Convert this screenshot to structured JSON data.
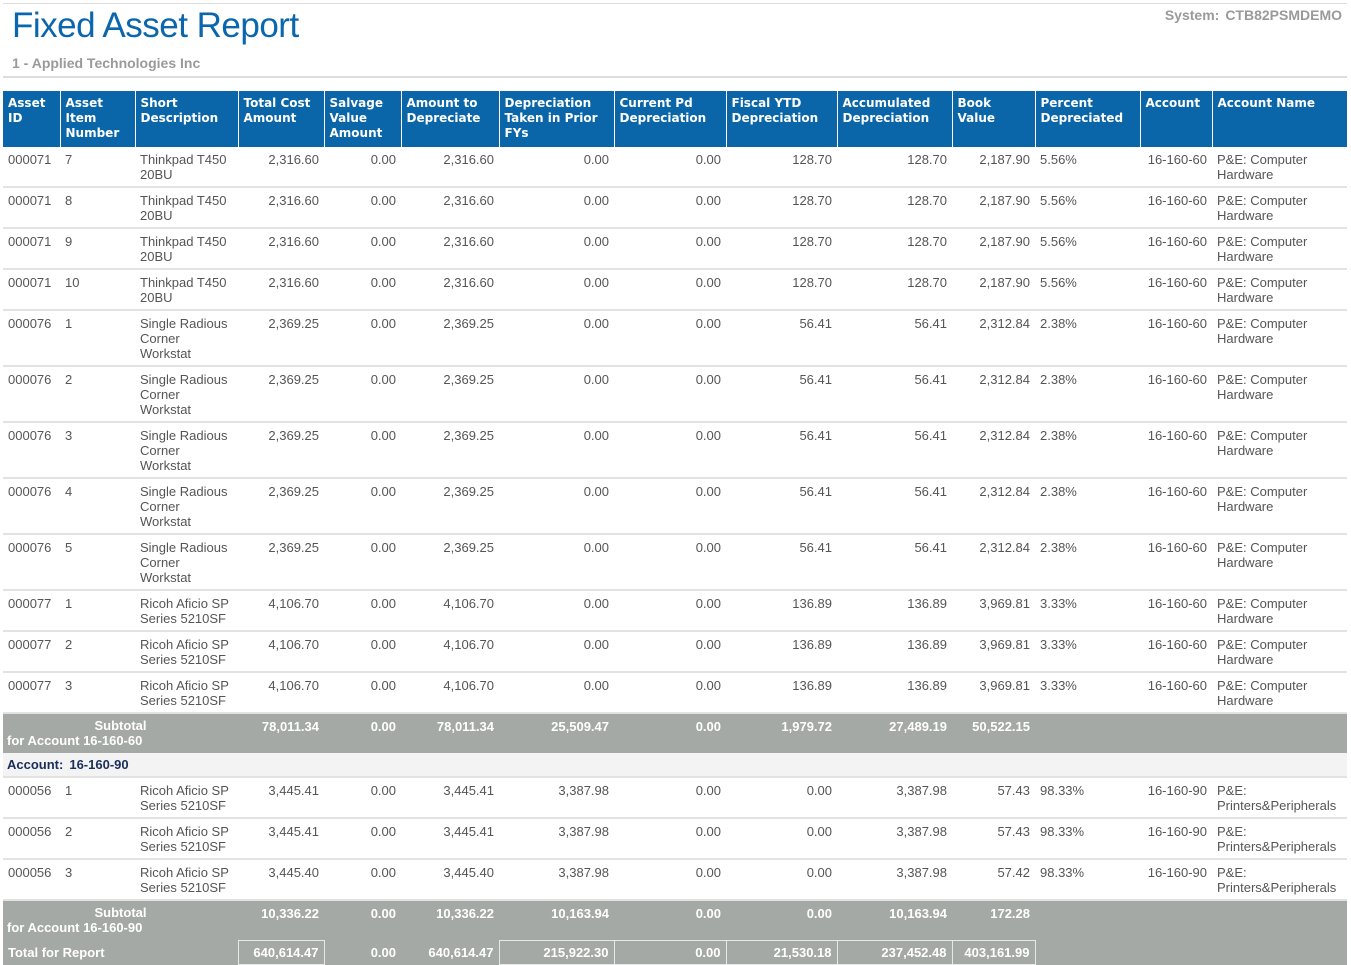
{
  "header": {
    "title": "Fixed Asset Report",
    "company": "1 - Applied Technologies Inc",
    "system_label": "System:",
    "system_value": "CTB82PSMDEMO"
  },
  "columns": [
    "Asset ID",
    "Asset Item Number",
    "Short Description",
    "Total Cost Amount",
    "Salvage Value Amount",
    "Amount to Depreciate",
    "Depreciation Taken in Prior FYs",
    "Current Pd Depreciation",
    "Fiscal YTD Depreciation",
    "Accumulated Depreciation",
    "Book Value",
    "Percent Depreciated",
    "Account",
    "Account Name"
  ],
  "groups": [
    {
      "account_label": "",
      "rows": [
        [
          "000071",
          "7",
          "Thinkpad T450 20BU",
          "2,316.60",
          "0.00",
          "2,316.60",
          "0.00",
          "0.00",
          "128.70",
          "128.70",
          "2,187.90",
          "5.56%",
          "16-160-60",
          "P&E: Computer Hardware"
        ],
        [
          "000071",
          "8",
          "Thinkpad T450 20BU",
          "2,316.60",
          "0.00",
          "2,316.60",
          "0.00",
          "0.00",
          "128.70",
          "128.70",
          "2,187.90",
          "5.56%",
          "16-160-60",
          "P&E: Computer Hardware"
        ],
        [
          "000071",
          "9",
          "Thinkpad T450 20BU",
          "2,316.60",
          "0.00",
          "2,316.60",
          "0.00",
          "0.00",
          "128.70",
          "128.70",
          "2,187.90",
          "5.56%",
          "16-160-60",
          "P&E: Computer Hardware"
        ],
        [
          "000071",
          "10",
          "Thinkpad T450 20BU",
          "2,316.60",
          "0.00",
          "2,316.60",
          "0.00",
          "0.00",
          "128.70",
          "128.70",
          "2,187.90",
          "5.56%",
          "16-160-60",
          "P&E: Computer Hardware"
        ],
        [
          "000076",
          "1",
          "Single Radious Corner Workstat",
          "2,369.25",
          "0.00",
          "2,369.25",
          "0.00",
          "0.00",
          "56.41",
          "56.41",
          "2,312.84",
          "2.38%",
          "16-160-60",
          "P&E: Computer Hardware"
        ],
        [
          "000076",
          "2",
          "Single Radious Corner Workstat",
          "2,369.25",
          "0.00",
          "2,369.25",
          "0.00",
          "0.00",
          "56.41",
          "56.41",
          "2,312.84",
          "2.38%",
          "16-160-60",
          "P&E: Computer Hardware"
        ],
        [
          "000076",
          "3",
          "Single Radious Corner Workstat",
          "2,369.25",
          "0.00",
          "2,369.25",
          "0.00",
          "0.00",
          "56.41",
          "56.41",
          "2,312.84",
          "2.38%",
          "16-160-60",
          "P&E: Computer Hardware"
        ],
        [
          "000076",
          "4",
          "Single Radious Corner Workstat",
          "2,369.25",
          "0.00",
          "2,369.25",
          "0.00",
          "0.00",
          "56.41",
          "56.41",
          "2,312.84",
          "2.38%",
          "16-160-60",
          "P&E: Computer Hardware"
        ],
        [
          "000076",
          "5",
          "Single Radious Corner Workstat",
          "2,369.25",
          "0.00",
          "2,369.25",
          "0.00",
          "0.00",
          "56.41",
          "56.41",
          "2,312.84",
          "2.38%",
          "16-160-60",
          "P&E: Computer Hardware"
        ],
        [
          "000077",
          "1",
          "Ricoh Aficio SP Series 5210SF",
          "4,106.70",
          "0.00",
          "4,106.70",
          "0.00",
          "0.00",
          "136.89",
          "136.89",
          "3,969.81",
          "3.33%",
          "16-160-60",
          "P&E: Computer Hardware"
        ],
        [
          "000077",
          "2",
          "Ricoh Aficio SP Series 5210SF",
          "4,106.70",
          "0.00",
          "4,106.70",
          "0.00",
          "0.00",
          "136.89",
          "136.89",
          "3,969.81",
          "3.33%",
          "16-160-60",
          "P&E: Computer Hardware"
        ],
        [
          "000077",
          "3",
          "Ricoh Aficio SP Series 5210SF",
          "4,106.70",
          "0.00",
          "4,106.70",
          "0.00",
          "0.00",
          "136.89",
          "136.89",
          "3,969.81",
          "3.33%",
          "16-160-60",
          "P&E: Computer Hardware"
        ]
      ],
      "subtotal": {
        "label1": "Subtotal",
        "label2": "for Account 16-160-60",
        "values": [
          "78,011.34",
          "0.00",
          "78,011.34",
          "25,509.47",
          "0.00",
          "1,979.72",
          "27,489.19",
          "50,522.15"
        ]
      }
    },
    {
      "account_label": "Account:",
      "account_value": "16-160-90",
      "rows": [
        [
          "000056",
          "1",
          "Ricoh Aficio SP Series 5210SF",
          "3,445.41",
          "0.00",
          "3,445.41",
          "3,387.98",
          "0.00",
          "0.00",
          "3,387.98",
          "57.43",
          "98.33%",
          "16-160-90",
          "P&E: Printers&Peripherals"
        ],
        [
          "000056",
          "2",
          "Ricoh Aficio SP Series 5210SF",
          "3,445.41",
          "0.00",
          "3,445.41",
          "3,387.98",
          "0.00",
          "0.00",
          "3,387.98",
          "57.43",
          "98.33%",
          "16-160-90",
          "P&E: Printers&Peripherals"
        ],
        [
          "000056",
          "3",
          "Ricoh Aficio SP Series 5210SF",
          "3,445.40",
          "0.00",
          "3,445.40",
          "3,387.98",
          "0.00",
          "0.00",
          "3,387.98",
          "57.42",
          "98.33%",
          "16-160-90",
          "P&E: Printers&Peripherals"
        ]
      ],
      "subtotal": {
        "label1": "Subtotal",
        "label2": "for Account 16-160-90",
        "values": [
          "10,336.22",
          "0.00",
          "10,336.22",
          "10,163.94",
          "0.00",
          "0.00",
          "10,163.94",
          "172.28"
        ]
      }
    }
  ],
  "total": {
    "label": "Total for Report",
    "values": [
      "640,614.47",
      "0.00",
      "640,614.47",
      "215,922.30",
      "0.00",
      "21,530.18",
      "237,452.48",
      "403,161.99"
    ]
  }
}
